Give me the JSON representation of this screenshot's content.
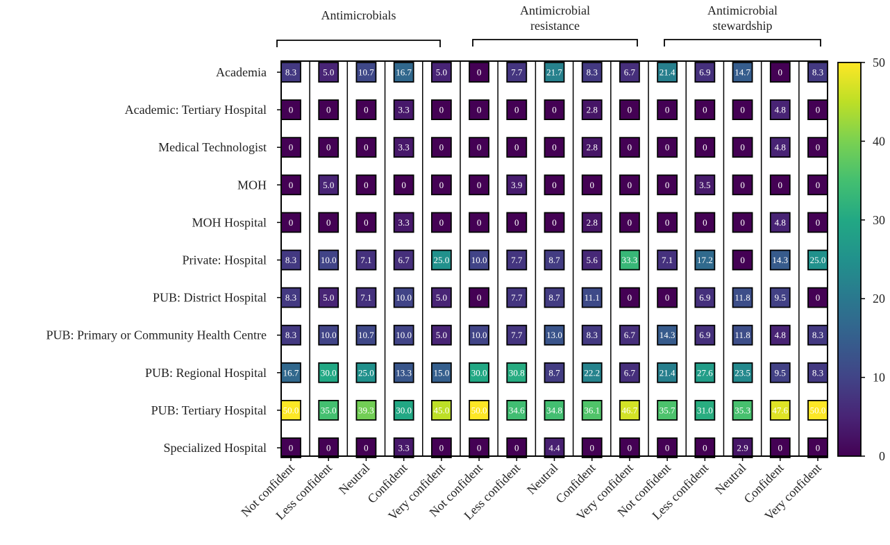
{
  "chart_data": {
    "type": "heatmap",
    "groups": [
      {
        "label_lines": [
          "Antimicrobials"
        ],
        "columns": [
          0,
          1,
          2,
          3,
          4
        ]
      },
      {
        "label_lines": [
          "Antimicrobial",
          "resistance"
        ],
        "columns": [
          5,
          6,
          7,
          8,
          9
        ]
      },
      {
        "label_lines": [
          "Antimicrobial",
          "stewardship"
        ],
        "columns": [
          10,
          11,
          12,
          13,
          14
        ]
      }
    ],
    "x_categories": [
      "Not confident",
      "Less confident",
      "Neutral",
      "Confident",
      "Very confident",
      "Not confident",
      "Less confident",
      "Neutral",
      "Confident",
      "Very confident",
      "Not confident",
      "Less confident",
      "Neutral",
      "Confident",
      "Very confident"
    ],
    "y_categories": [
      "Academia",
      "Academic: Tertiary Hospital",
      "Medical Technologist",
      "MOH",
      "MOH Hospital",
      "Private: Hospital",
      "PUB: District Hospital",
      "PUB: Primary or Community Health Centre",
      "PUB: Regional Hospital",
      "PUB: Tertiary Hospital",
      "Specialized Hospital"
    ],
    "values": [
      [
        "8.3",
        "5.0",
        "10.7",
        "16.7",
        "5.0",
        "0",
        "7.7",
        "21.7",
        "8.3",
        "6.7",
        "21.4",
        "6.9",
        "14.7",
        "0",
        "8.3"
      ],
      [
        "0",
        "0",
        "0",
        "3.3",
        "0",
        "0",
        "0",
        "0",
        "2.8",
        "0",
        "0",
        "0",
        "0",
        "4.8",
        "0"
      ],
      [
        "0",
        "0",
        "0",
        "3.3",
        "0",
        "0",
        "0",
        "0",
        "2.8",
        "0",
        "0",
        "0",
        "0",
        "4.8",
        "0"
      ],
      [
        "0",
        "5.0",
        "0",
        "0",
        "0",
        "0",
        "3.9",
        "0",
        "0",
        "0",
        "0",
        "3.5",
        "0",
        "0",
        "0"
      ],
      [
        "0",
        "0",
        "0",
        "3.3",
        "0",
        "0",
        "0",
        "0",
        "2.8",
        "0",
        "0",
        "0",
        "0",
        "4.8",
        "0"
      ],
      [
        "8.3",
        "10.0",
        "7.1",
        "6.7",
        "25.0",
        "10.0",
        "7.7",
        "8.7",
        "5.6",
        "33.3",
        "7.1",
        "17.2",
        "0",
        "14.3",
        "25.0"
      ],
      [
        "8.3",
        "5.0",
        "7.1",
        "10.0",
        "5.0",
        "0",
        "7.7",
        "8.7",
        "11.1",
        "0",
        "0",
        "6.9",
        "11.8",
        "9.5",
        "0"
      ],
      [
        "8.3",
        "10.0",
        "10.7",
        "10.0",
        "5.0",
        "10.0",
        "7.7",
        "13.0",
        "8.3",
        "6.7",
        "14.3",
        "6.9",
        "11.8",
        "4.8",
        "8.3"
      ],
      [
        "16.7",
        "30.0",
        "25.0",
        "13.3",
        "15.0",
        "30.0",
        "30.8",
        "8.7",
        "22.2",
        "6.7",
        "21.4",
        "27.6",
        "23.5",
        "9.5",
        "8.3"
      ],
      [
        "50.0",
        "35.0",
        "39.3",
        "30.0",
        "45.0",
        "50.0",
        "34.6",
        "34.8",
        "36.1",
        "46.7",
        "35.7",
        "31.0",
        "35.3",
        "47.6",
        "50.0"
      ],
      [
        "0",
        "0",
        "0",
        "3.3",
        "0",
        "0",
        "0",
        "4.4",
        "0",
        "0",
        "0",
        "0",
        "2.9",
        "0",
        "0"
      ]
    ],
    "colormap": "viridis",
    "colorbar": {
      "range": [
        0,
        50
      ],
      "ticks": [
        "0",
        "10",
        "20",
        "30",
        "40",
        "50"
      ],
      "placement": "right"
    },
    "grid": false
  }
}
